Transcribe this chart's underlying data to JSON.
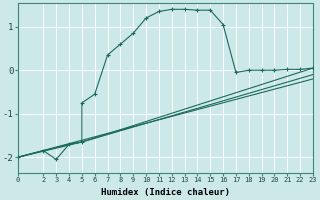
{
  "xlabel": "Humidex (Indice chaleur)",
  "background_color": "#cce8e8",
  "grid_color": "#ffffff",
  "line_color": "#1a6b5a",
  "xlim": [
    0,
    23
  ],
  "ylim": [
    -2.35,
    1.55
  ],
  "xticks": [
    0,
    2,
    3,
    4,
    5,
    6,
    7,
    8,
    9,
    10,
    11,
    12,
    13,
    14,
    15,
    16,
    17,
    18,
    19,
    20,
    21,
    22,
    23
  ],
  "yticks": [
    -2,
    -1,
    0,
    1
  ],
  "curve1_x": [
    0,
    2,
    3,
    4,
    5,
    5,
    6,
    7,
    8,
    9,
    10,
    11,
    12,
    13,
    14,
    15,
    16,
    17,
    18,
    19,
    20,
    21,
    22,
    23
  ],
  "curve1_y": [
    -2.0,
    -1.85,
    -2.05,
    -1.7,
    -1.65,
    -0.75,
    -0.55,
    0.35,
    0.6,
    0.85,
    1.2,
    1.35,
    1.4,
    1.4,
    1.38,
    1.38,
    1.05,
    -0.05,
    0.0,
    0.0,
    0.0,
    0.02,
    0.02,
    0.05
  ],
  "curve2_x": [
    0,
    4,
    5,
    23
  ],
  "curve2_y": [
    -2.0,
    -1.7,
    -1.65,
    0.05
  ],
  "curve3_x": [
    0,
    5,
    23
  ],
  "curve3_y": [
    -2.0,
    -1.65,
    -0.1
  ],
  "curve4_x": [
    0,
    23
  ],
  "curve4_y": [
    -2.0,
    -0.2
  ]
}
